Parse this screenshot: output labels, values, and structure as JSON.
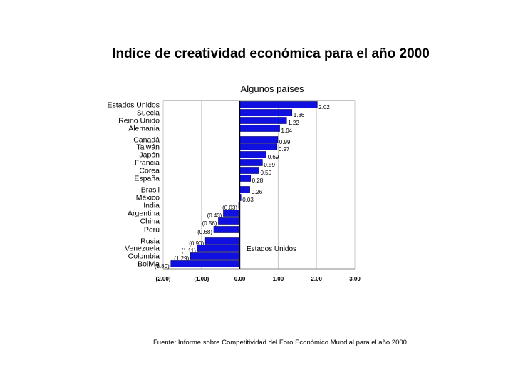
{
  "title": "Indice de creatividad económica para el año 2000",
  "subtitle": "Algunos países",
  "source": "Fuente: Informe sobre Competitividad del Foro Económico Mundial para el año  2000",
  "colors": {
    "bar": "#1010e0",
    "bar_edge": "#000066",
    "grid": "#c8c8c8"
  },
  "chart_data": {
    "type": "bar",
    "orientation": "horizontal",
    "title": "Indice de creatividad económica para el año 2000",
    "subtitle": "Algunos países",
    "categories": [
      "Estados Unidos",
      "Suecia",
      "Reino Unido",
      "Alemania",
      "Canadá",
      "Taiwán",
      "Japón",
      "Francia",
      "Corea",
      "España",
      "Brasil",
      "México",
      "India",
      "Argentina",
      "China",
      "Perú",
      "Rusia",
      "Venezuela",
      "Colombia",
      "Bolivia"
    ],
    "values": [
      2.02,
      1.36,
      1.22,
      1.04,
      0.99,
      0.97,
      0.69,
      0.59,
      0.5,
      0.28,
      0.26,
      0.03,
      -0.03,
      -0.43,
      -0.56,
      -0.68,
      -0.9,
      -1.11,
      -1.29,
      -1.8
    ],
    "value_labels": [
      "2.02",
      "1.36",
      "1.22",
      "1.04",
      "0.99",
      "0.97",
      "0.69",
      "0.59",
      "0.50",
      "0.28",
      "0.26",
      "0.03",
      "(0.03)",
      "(0.43)",
      "(0.56)",
      "(0.68)",
      "(0.90)",
      "(1.11)",
      "(1.29)",
      "(1.80)"
    ],
    "xlim": [
      -2.0,
      3.0
    ],
    "x_ticks": [
      -2,
      -1,
      0,
      1,
      2,
      3
    ],
    "x_tick_labels": [
      "(2.00)",
      "(1.00)",
      "0.00",
      "1.00",
      "2.00",
      "3.00"
    ],
    "grid": true,
    "annotation": "Estados Unidos"
  }
}
